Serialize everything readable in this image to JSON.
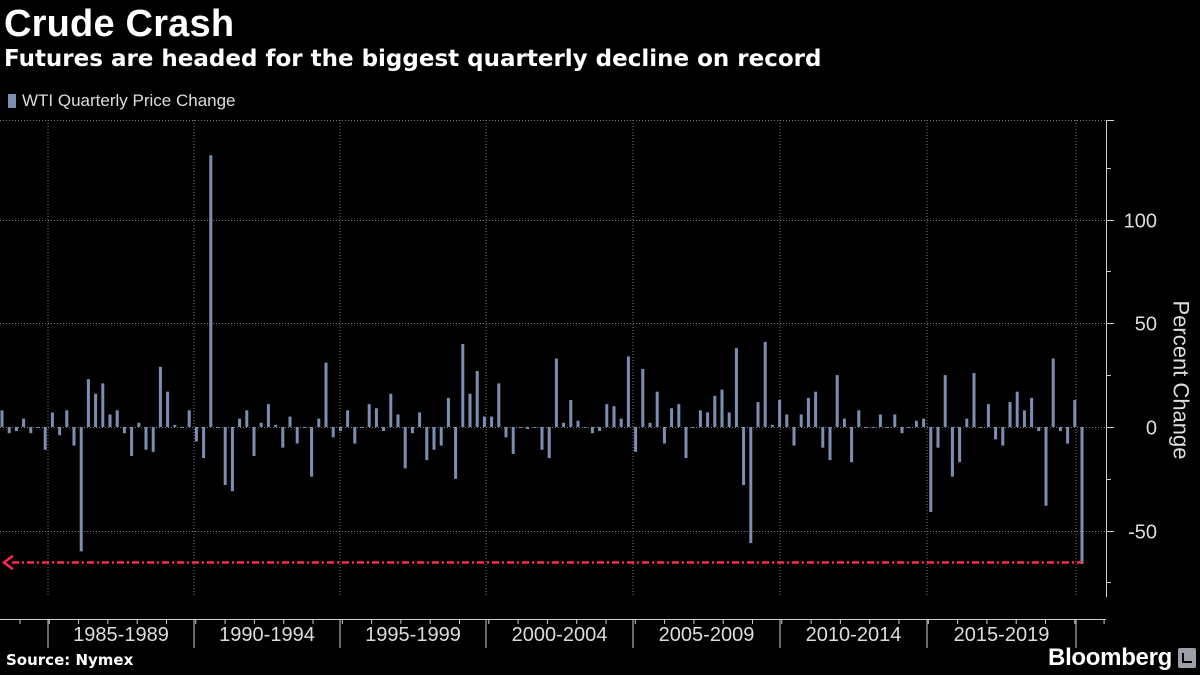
{
  "title": "Crude Crash",
  "subtitle": "Futures are headed for the biggest quarterly decline on record",
  "source": "Source: Nymex",
  "brand": "Bloomberg",
  "colors": {
    "bars": "#7b8fb3",
    "annotation": "#ff2a4a",
    "grid": "#7a7a7a",
    "background": "#000000"
  },
  "chart_data": {
    "type": "bar",
    "title": "Crude Crash",
    "subtitle": "Futures are headed for the biggest quarterly decline on record",
    "ylabel": "Percent Change",
    "xlabel": "",
    "ylim": [
      -82,
      148
    ],
    "y_ticks": [
      -50,
      0,
      50,
      100
    ],
    "y_axis_position": "right",
    "grid": true,
    "legend_position": "top-left",
    "x_tick_labels": [
      "1985-1989",
      "1990-1994",
      "1995-1999",
      "2000-2004",
      "2005-2009",
      "2010-2014",
      "2015-2019"
    ],
    "series": [
      {
        "name": "WTI Quarterly Price Change",
        "values": [
          8,
          -3,
          -2,
          4,
          -3,
          0,
          -11,
          7,
          -4,
          8,
          -9,
          -60,
          23,
          16,
          21,
          6,
          8,
          -3,
          -14,
          2,
          -11,
          -12,
          29,
          17,
          1,
          0,
          8,
          -7,
          -15,
          131,
          0,
          -28,
          -31,
          4,
          8,
          -14,
          2,
          11,
          1,
          -10,
          5,
          -8,
          0,
          -24,
          4,
          31,
          -5,
          -2,
          8,
          -8,
          0,
          11,
          9,
          -2,
          16,
          6,
          -20,
          -3,
          7,
          -16,
          -11,
          -9,
          14,
          -25,
          40,
          16,
          27,
          5,
          5,
          21,
          -5,
          -13,
          0,
          -1,
          0,
          -11,
          -15,
          33,
          2,
          13,
          3,
          0,
          -3,
          -2,
          11,
          10,
          4,
          34,
          -12,
          28,
          2,
          17,
          -8,
          9,
          11,
          -15,
          0,
          8,
          7,
          15,
          18,
          7,
          38,
          -28,
          -56,
          12,
          41,
          1,
          13,
          6,
          -9,
          6,
          14,
          17,
          -10,
          -16,
          25,
          4,
          -17,
          8,
          0,
          0,
          6,
          0,
          6,
          -3,
          0,
          3,
          4,
          -41,
          -10,
          25,
          -24,
          -17,
          4,
          26,
          0,
          11,
          -6,
          -9,
          12,
          17,
          8,
          14,
          -2,
          -38,
          33,
          -2,
          -8,
          13,
          -66
        ]
      }
    ],
    "annotations": [
      {
        "type": "dashed-arrow",
        "direction": "left",
        "y": -65,
        "color": "#ff2a4a"
      }
    ]
  }
}
